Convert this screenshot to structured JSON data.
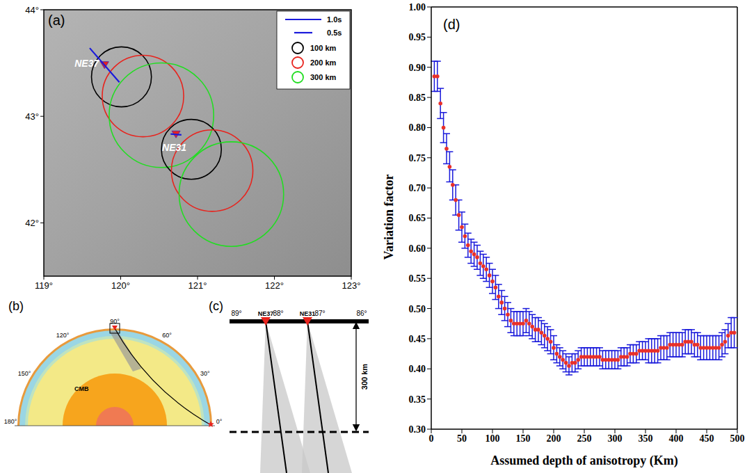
{
  "chart_data": {
    "type": "scatter",
    "panel_label": "(d)",
    "x_label": "Assumed depth of anisotropy (Km)",
    "y_label": "Variation factor",
    "color": "#e8302a",
    "marker": "circle",
    "xlim": [
      0,
      500
    ],
    "xticks": [
      0,
      50,
      100,
      150,
      200,
      250,
      300,
      350,
      400,
      450,
      500
    ],
    "ylim": [
      0.3,
      1.0
    ],
    "yticks": [
      {
        "value": 0.3,
        "label": "0.30"
      },
      {
        "value": 0.35,
        "label": "0.35"
      },
      {
        "value": 0.4,
        "label": "0.40"
      },
      {
        "value": 0.45,
        "label": "0.45"
      },
      {
        "value": 0.5,
        "label": "0.50"
      },
      {
        "value": 0.55,
        "label": "0.55"
      },
      {
        "value": 0.6,
        "label": "0.60"
      },
      {
        "value": 0.65,
        "label": "0.65"
      },
      {
        "value": 0.7,
        "label": "0.70"
      },
      {
        "value": 0.75,
        "label": "0.75"
      },
      {
        "value": 0.8,
        "label": "0.80"
      },
      {
        "value": 0.85,
        "label": "0.85"
      },
      {
        "value": 0.9,
        "label": "0.90"
      },
      {
        "value": 0.95,
        "label": "0.95"
      },
      {
        "value": 1.0,
        "label": "1.00"
      }
    ],
    "x": [
      5,
      10,
      15,
      20,
      25,
      30,
      35,
      40,
      45,
      50,
      55,
      60,
      65,
      70,
      75,
      80,
      85,
      90,
      95,
      100,
      105,
      110,
      115,
      120,
      125,
      130,
      135,
      140,
      145,
      150,
      155,
      160,
      165,
      170,
      175,
      180,
      185,
      190,
      195,
      200,
      205,
      210,
      215,
      220,
      225,
      230,
      235,
      240,
      245,
      250,
      255,
      260,
      265,
      270,
      275,
      280,
      285,
      290,
      295,
      300,
      305,
      310,
      315,
      320,
      325,
      330,
      335,
      340,
      345,
      350,
      355,
      360,
      365,
      370,
      375,
      380,
      385,
      390,
      395,
      400,
      405,
      410,
      415,
      420,
      425,
      430,
      435,
      440,
      445,
      450,
      455,
      460,
      465,
      470,
      475,
      480,
      485,
      490,
      495
    ],
    "values": [
      0.885,
      0.885,
      0.84,
      0.8,
      0.765,
      0.735,
      0.705,
      0.68,
      0.655,
      0.635,
      0.62,
      0.605,
      0.595,
      0.59,
      0.585,
      0.575,
      0.57,
      0.565,
      0.555,
      0.545,
      0.535,
      0.52,
      0.51,
      0.5,
      0.49,
      0.48,
      0.475,
      0.475,
      0.475,
      0.475,
      0.48,
      0.475,
      0.47,
      0.465,
      0.465,
      0.46,
      0.455,
      0.45,
      0.445,
      0.435,
      0.425,
      0.42,
      0.415,
      0.41,
      0.405,
      0.41,
      0.41,
      0.415,
      0.42,
      0.42,
      0.42,
      0.42,
      0.42,
      0.42,
      0.42,
      0.415,
      0.415,
      0.415,
      0.415,
      0.415,
      0.415,
      0.42,
      0.42,
      0.42,
      0.425,
      0.425,
      0.425,
      0.43,
      0.43,
      0.43,
      0.43,
      0.43,
      0.43,
      0.43,
      0.435,
      0.435,
      0.435,
      0.44,
      0.44,
      0.44,
      0.44,
      0.44,
      0.445,
      0.445,
      0.445,
      0.44,
      0.44,
      0.435,
      0.435,
      0.435,
      0.435,
      0.435,
      0.435,
      0.435,
      0.44,
      0.445,
      0.455,
      0.46,
      0.46
    ],
    "errors": [
      0.025,
      0.025,
      0.025,
      0.025,
      0.025,
      0.025,
      0.025,
      0.025,
      0.025,
      0.025,
      0.02,
      0.02,
      0.02,
      0.02,
      0.02,
      0.02,
      0.02,
      0.02,
      0.02,
      0.02,
      0.02,
      0.02,
      0.02,
      0.02,
      0.02,
      0.02,
      0.02,
      0.02,
      0.02,
      0.02,
      0.02,
      0.02,
      0.02,
      0.02,
      0.02,
      0.02,
      0.02,
      0.02,
      0.02,
      0.02,
      0.015,
      0.015,
      0.015,
      0.015,
      0.015,
      0.015,
      0.015,
      0.015,
      0.015,
      0.015,
      0.015,
      0.015,
      0.015,
      0.015,
      0.015,
      0.015,
      0.015,
      0.015,
      0.015,
      0.015,
      0.015,
      0.015,
      0.015,
      0.015,
      0.015,
      0.015,
      0.015,
      0.015,
      0.015,
      0.015,
      0.02,
      0.02,
      0.02,
      0.02,
      0.02,
      0.02,
      0.02,
      0.02,
      0.02,
      0.02,
      0.02,
      0.02,
      0.02,
      0.02,
      0.02,
      0.02,
      0.02,
      0.02,
      0.02,
      0.02,
      0.02,
      0.02,
      0.02,
      0.02,
      0.02,
      0.02,
      0.02,
      0.025,
      0.025
    ]
  },
  "panel_a": {
    "label": "(a)",
    "type": "map",
    "xlim": [
      119,
      123
    ],
    "ylim": [
      41.5,
      44
    ],
    "xticks": [
      {
        "value": 119,
        "label": "119°"
      },
      {
        "value": 120,
        "label": "120°"
      },
      {
        "value": 121,
        "label": "121°"
      },
      {
        "value": 122,
        "label": "122°"
      },
      {
        "value": 123,
        "label": "123°"
      }
    ],
    "yticks": [
      {
        "value": 42,
        "label": "42°"
      },
      {
        "value": 43,
        "label": "43°"
      },
      {
        "value": 44,
        "label": "44°"
      }
    ],
    "stations": [
      {
        "name": "NE37",
        "lon": 119.79,
        "lat": 43.48,
        "fast_direction": 139,
        "delay": 1.25
      },
      {
        "name": "NE31",
        "lon": 120.72,
        "lat": 42.83,
        "fast_direction": 95,
        "delay": 0.3
      }
    ],
    "legend_bars": [
      {
        "label": "1.0s",
        "delay": 1.0
      },
      {
        "label": "0.5s",
        "delay": 0.5
      }
    ],
    "circles": [
      {
        "label": "100 km",
        "color": "#000000"
      },
      {
        "label": "200 km",
        "color": "#e8231d"
      },
      {
        "label": "300 km",
        "color": "#22dd22"
      }
    ],
    "zones": [
      {
        "station": "NE37",
        "depth_label": "100 km",
        "lon": 120.01,
        "lat": 43.37,
        "radius": 0.39
      },
      {
        "station": "NE37",
        "depth_label": "200 km",
        "lon": 120.29,
        "lat": 43.19,
        "radius": 0.53
      },
      {
        "station": "NE37",
        "depth_label": "300 km",
        "lon": 120.53,
        "lat": 43.01,
        "radius": 0.68
      },
      {
        "station": "NE31",
        "depth_label": "100 km",
        "lon": 120.92,
        "lat": 42.69,
        "radius": 0.39
      },
      {
        "station": "NE31",
        "depth_label": "200 km",
        "lon": 121.19,
        "lat": 42.49,
        "radius": 0.53
      },
      {
        "station": "NE31",
        "depth_label": "300 km",
        "lon": 121.44,
        "lat": 42.27,
        "radius": 0.68
      }
    ]
  },
  "panel_b": {
    "label": "(b)",
    "core_label": "CMB",
    "event_angle": 0,
    "station_angle": 90,
    "angle_ticks": [
      {
        "value": 0,
        "label": "0°"
      },
      {
        "value": 30,
        "label": "30°"
      },
      {
        "value": 60,
        "label": "60°"
      },
      {
        "value": 90,
        "label": "90°"
      },
      {
        "value": 120,
        "label": "120°"
      },
      {
        "value": 150,
        "label": "150°"
      },
      {
        "value": 180,
        "label": "180°"
      }
    ]
  },
  "panel_c": {
    "label": "(c)",
    "xlim": [
      89,
      86
    ],
    "xticks": [
      {
        "value": 89,
        "label": "89°"
      },
      {
        "value": 88,
        "label": "88°"
      },
      {
        "value": 87,
        "label": "87°"
      },
      {
        "value": 86,
        "label": "86°"
      }
    ],
    "stations": [
      {
        "name": "NE37",
        "lon": 88.3
      },
      {
        "name": "NE31",
        "lon": 87.3
      }
    ],
    "depth": 300,
    "depth_label": "300 km"
  }
}
